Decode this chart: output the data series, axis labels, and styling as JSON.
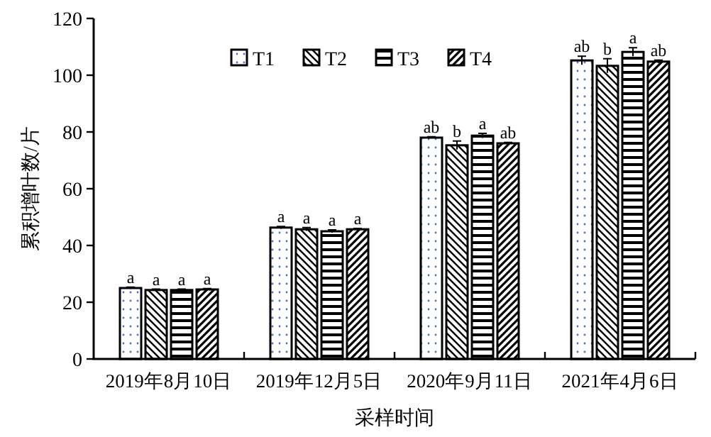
{
  "chart_data": {
    "type": "bar",
    "xlabel": "采样时间",
    "ylabel": "累积增叶数/片",
    "categories": [
      "2019年8月10日",
      "2019年12月5日",
      "2020年9月11日",
      "2021年4月6日"
    ],
    "series": [
      {
        "name": "T1",
        "color": "#000000",
        "values": [
          25,
          46.3,
          78,
          105.2
        ],
        "errors": [
          0.3,
          0.4,
          0.3,
          1.5
        ],
        "value_labels": [
          "a",
          "a",
          "ab",
          "ab"
        ]
      },
      {
        "name": "T2",
        "color": "#000000",
        "values": [
          24.3,
          45.7,
          75.3,
          103.3
        ],
        "errors": [
          0.3,
          0.6,
          1.5,
          2.5
        ],
        "value_labels": [
          "a",
          "a",
          "b",
          "b"
        ]
      },
      {
        "name": "T3",
        "color": "#000000",
        "values": [
          24.3,
          45,
          78.7,
          108.2
        ],
        "errors": [
          0.3,
          0.5,
          0.8,
          1.5
        ],
        "value_labels": [
          "a",
          "a",
          "a",
          "a"
        ]
      },
      {
        "name": "T4",
        "color": "#000000",
        "values": [
          24.5,
          45.7,
          76,
          104.8
        ],
        "errors": [
          0.3,
          0.3,
          0.3,
          0.5
        ],
        "value_labels": [
          "a",
          "a",
          "ab",
          "ab"
        ]
      }
    ],
    "ylim": [
      0,
      120
    ],
    "yticks": [
      0,
      20,
      40,
      60,
      80,
      100,
      120
    ],
    "grid": false,
    "legend": "top"
  }
}
